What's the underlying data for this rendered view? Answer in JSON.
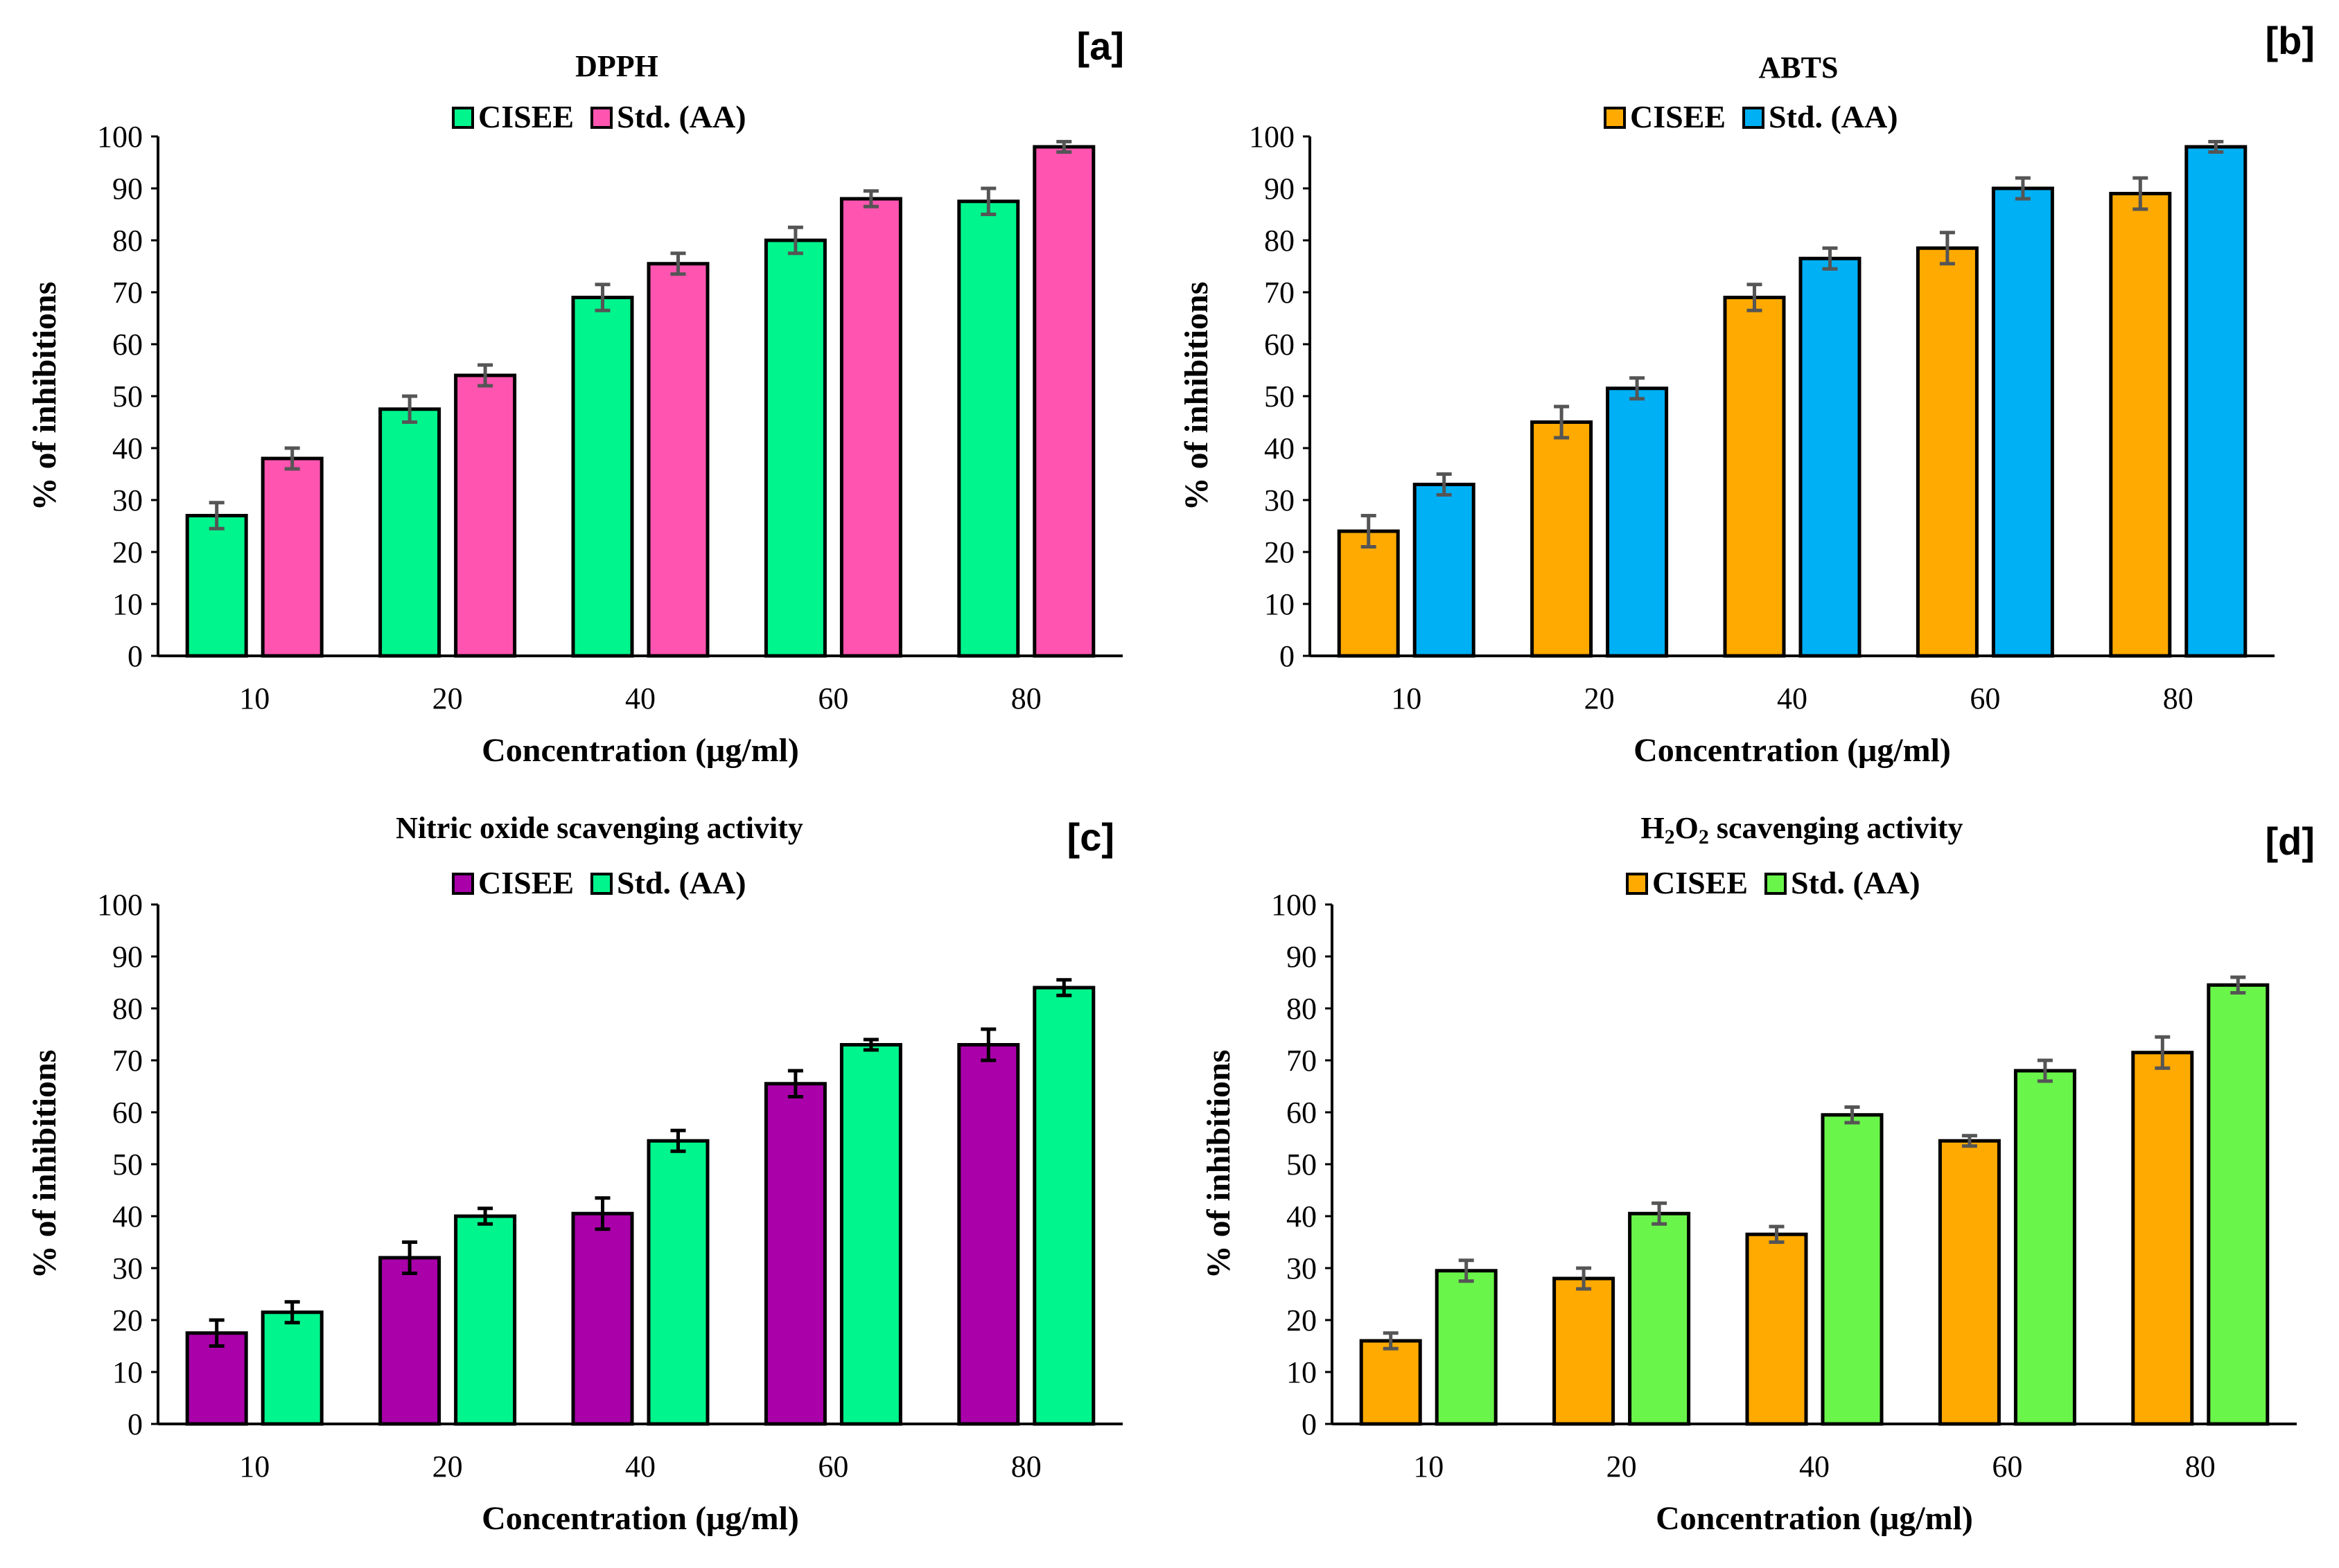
{
  "chart_data": [
    {
      "id": "a",
      "type": "bar",
      "panel_tag": "[a]",
      "title": "DPPH",
      "title_sub": "",
      "title_tail": "",
      "xlabel": "Concentration (μg/ml)",
      "ylabel": "% of inhibitions",
      "ylim": [
        0,
        100
      ],
      "yticks": [
        0,
        10,
        20,
        30,
        40,
        50,
        60,
        70,
        80,
        90,
        100
      ],
      "categories": [
        "10",
        "20",
        "40",
        "60",
        "80"
      ],
      "legend_position": "top-center",
      "error_bar_color": "#555555",
      "series": [
        {
          "name": "CISEE",
          "color": "#00f58c",
          "values": [
            27,
            47.5,
            69,
            80,
            87.5
          ],
          "errors": [
            2.5,
            2.5,
            2.5,
            2.5,
            2.5
          ]
        },
        {
          "name": "Std. (AA)",
          "color": "#ff55b0",
          "values": [
            38,
            54,
            75.5,
            88,
            98
          ],
          "errors": [
            2,
            2,
            2,
            1.5,
            1
          ]
        }
      ]
    },
    {
      "id": "b",
      "type": "bar",
      "panel_tag": "[b]",
      "title": "ABTS",
      "title_sub": "",
      "title_tail": "",
      "xlabel": "Concentration (μg/ml)",
      "ylabel": "% of inhibitions",
      "ylim": [
        0,
        100
      ],
      "yticks": [
        0,
        10,
        20,
        30,
        40,
        50,
        60,
        70,
        80,
        90,
        100
      ],
      "categories": [
        "10",
        "20",
        "40",
        "60",
        "80"
      ],
      "legend_position": "top-center",
      "error_bar_color": "#555555",
      "series": [
        {
          "name": "CISEE",
          "color": "#ffaa00",
          "values": [
            24,
            45,
            69,
            78.5,
            89
          ],
          "errors": [
            3,
            3,
            2.5,
            3,
            3
          ]
        },
        {
          "name": "Std. (AA)",
          "color": "#00b0f5",
          "values": [
            33,
            51.5,
            76.5,
            90,
            98
          ],
          "errors": [
            2,
            2,
            2,
            2,
            1
          ]
        }
      ]
    },
    {
      "id": "c",
      "type": "bar",
      "panel_tag": "[c]",
      "title": "Nitric oxide scavenging activity",
      "title_sub": "",
      "title_tail": "",
      "xlabel": "Concentration (μg/ml)",
      "ylabel": "% of inhibitions",
      "ylim": [
        0,
        100
      ],
      "yticks": [
        0,
        10,
        20,
        30,
        40,
        50,
        60,
        70,
        80,
        90,
        100
      ],
      "categories": [
        "10",
        "20",
        "40",
        "60",
        "80"
      ],
      "legend_position": "top-center",
      "error_bar_color": "#000000",
      "series": [
        {
          "name": "CISEE",
          "color": "#aa00aa",
          "values": [
            17.5,
            32,
            40.5,
            65.5,
            73
          ],
          "errors": [
            2.5,
            3,
            3,
            2.5,
            3
          ]
        },
        {
          "name": "Std. (AA)",
          "color": "#00f58c",
          "values": [
            21.5,
            40,
            54.5,
            73,
            84
          ],
          "errors": [
            2,
            1.5,
            2,
            1,
            1.5
          ]
        }
      ]
    },
    {
      "id": "d",
      "type": "bar",
      "panel_tag": "[d]",
      "title": "H",
      "title_sub": "2",
      "title_mid": "O",
      "title_sub2": "2",
      "title_tail": " scavenging activity",
      "xlabel": "Concentration (μg/ml)",
      "ylabel": "% of inhibitions",
      "ylim": [
        0,
        100
      ],
      "yticks": [
        0,
        10,
        20,
        30,
        40,
        50,
        60,
        70,
        80,
        90,
        100
      ],
      "categories": [
        "10",
        "20",
        "40",
        "60",
        "80"
      ],
      "legend_position": "top-center",
      "error_bar_color": "#555555",
      "series": [
        {
          "name": "CISEE",
          "color": "#ffaa00",
          "values": [
            16,
            28,
            36.5,
            54.5,
            71.5
          ],
          "errors": [
            1.5,
            2,
            1.5,
            1,
            3
          ]
        },
        {
          "name": "Std. (AA)",
          "color": "#6af54a",
          "values": [
            29.5,
            40.5,
            59.5,
            68,
            84.5
          ],
          "errors": [
            2,
            2,
            1.5,
            2,
            1.5
          ]
        }
      ]
    }
  ]
}
